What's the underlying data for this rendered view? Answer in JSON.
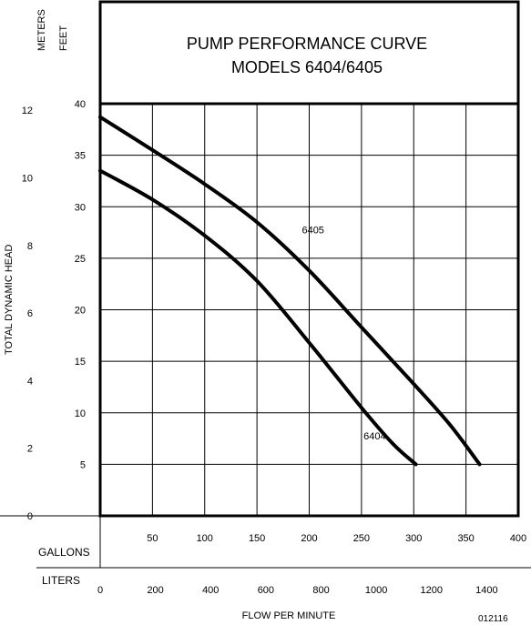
{
  "title_lines": [
    "PUMP PERFORMANCE CURVE",
    "MODELS 6404/6405"
  ],
  "axis_labels": {
    "meters": "METERS",
    "feet": "FEET",
    "y": "TOTAL DYNAMIC HEAD",
    "gallons": "GALLONS",
    "liters": "LITERS",
    "x": "FLOW PER MINUTE"
  },
  "footnote": "012116",
  "chart_data": {
    "type": "line",
    "title": "PUMP PERFORMANCE CURVE MODELS 6404/6405",
    "xlabel": "FLOW PER MINUTE",
    "ylabel": "TOTAL DYNAMIC HEAD",
    "x_unit": "GALLONS",
    "y_unit": "FEET",
    "xlim": [
      0,
      400
    ],
    "ylim": [
      0,
      40
    ],
    "grid": true,
    "x_ticks_gallons": [
      50,
      100,
      150,
      200,
      250,
      300,
      350,
      400
    ],
    "x_ticks_liters": [
      0,
      200,
      400,
      600,
      800,
      1000,
      1200,
      1400
    ],
    "y_ticks_feet": [
      5,
      10,
      15,
      20,
      25,
      30,
      35,
      40
    ],
    "y_ticks_meters": [
      0,
      2,
      4,
      6,
      8,
      10,
      12
    ],
    "series": [
      {
        "name": "6405",
        "x": [
          0,
          50,
          100,
          150,
          200,
          250,
          300,
          335,
          363
        ],
        "y": [
          38.7,
          35.5,
          32.2,
          28.5,
          23.8,
          18.3,
          12.8,
          8.8,
          5.0
        ]
      },
      {
        "name": "6404",
        "x": [
          0,
          50,
          100,
          150,
          200,
          250,
          280,
          302
        ],
        "y": [
          33.5,
          30.7,
          27.2,
          22.8,
          16.8,
          10.5,
          7.0,
          5.0
        ]
      }
    ],
    "series_label_positions": [
      {
        "name": "6405",
        "x": 193,
        "y": 27.4
      },
      {
        "name": "6404",
        "x": 252,
        "y": 7.4
      }
    ]
  }
}
